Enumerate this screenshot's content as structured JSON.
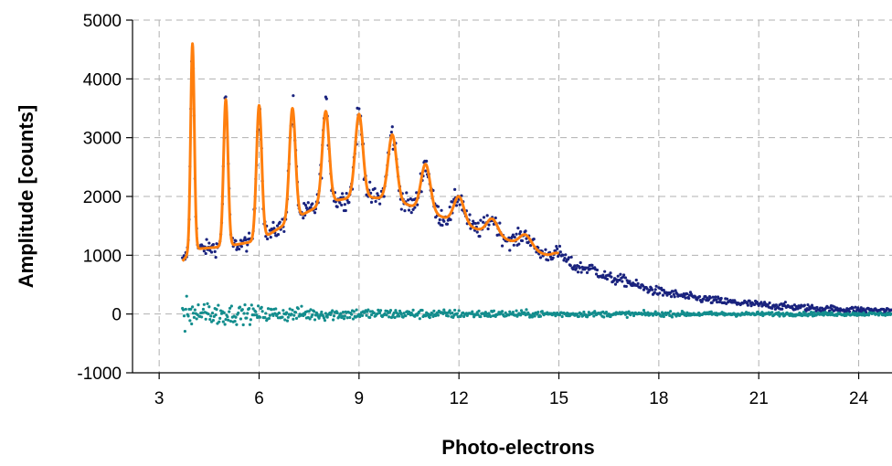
{
  "chart_data": {
    "type": "scatter",
    "title": "",
    "xlabel": "Photo-electrons",
    "ylabel": "Amplitude [counts]",
    "xlim": [
      2.2,
      25
    ],
    "ylim": [
      -1000,
      5000
    ],
    "x_ticks": [
      "3",
      "6",
      "9",
      "12",
      "15",
      "18",
      "21",
      "24"
    ],
    "y_ticks": [
      "-1000",
      "0",
      "1000",
      "2000",
      "3000",
      "4000",
      "5000"
    ],
    "grid": "dashed vertical and horizontal",
    "legend": "none",
    "peak_positions": [
      4,
      5,
      6,
      7,
      8,
      9,
      10,
      11,
      12,
      13,
      14,
      15,
      16,
      17
    ],
    "peak_amplitudes": [
      3500,
      2500,
      2300,
      1900,
      1550,
      1400,
      1100,
      800,
      450,
      270,
      200,
      130,
      70,
      40
    ],
    "series": [
      {
        "role": "measured",
        "style": "dots",
        "color": "#1a237e",
        "x_range": [
          3.7,
          25
        ],
        "envelope_x": [
          3.7,
          4.0,
          5.0,
          6.0,
          7.0,
          8.0,
          9.0,
          10.0,
          11.0,
          12.0,
          13.0,
          14.0,
          15.0,
          16.0,
          17.0,
          18.0,
          19.0,
          20.0,
          21.0,
          22.0,
          23.0,
          24.0,
          25.0
        ],
        "envelope_y": [
          900,
          1100,
          1150,
          1250,
          1600,
          1900,
          2000,
          1950,
          1750,
          1550,
          1350,
          1150,
          900,
          700,
          520,
          380,
          280,
          210,
          160,
          120,
          90,
          70,
          55
        ]
      },
      {
        "role": "fit",
        "style": "line",
        "color": "#ff7f0e",
        "x_range": [
          3.7,
          15
        ]
      },
      {
        "role": "residual",
        "style": "dots",
        "color": "#138d8d",
        "x_range": [
          3.7,
          25
        ],
        "center": 0,
        "spread_near_start": 150,
        "spread_at_end": 20
      }
    ]
  }
}
